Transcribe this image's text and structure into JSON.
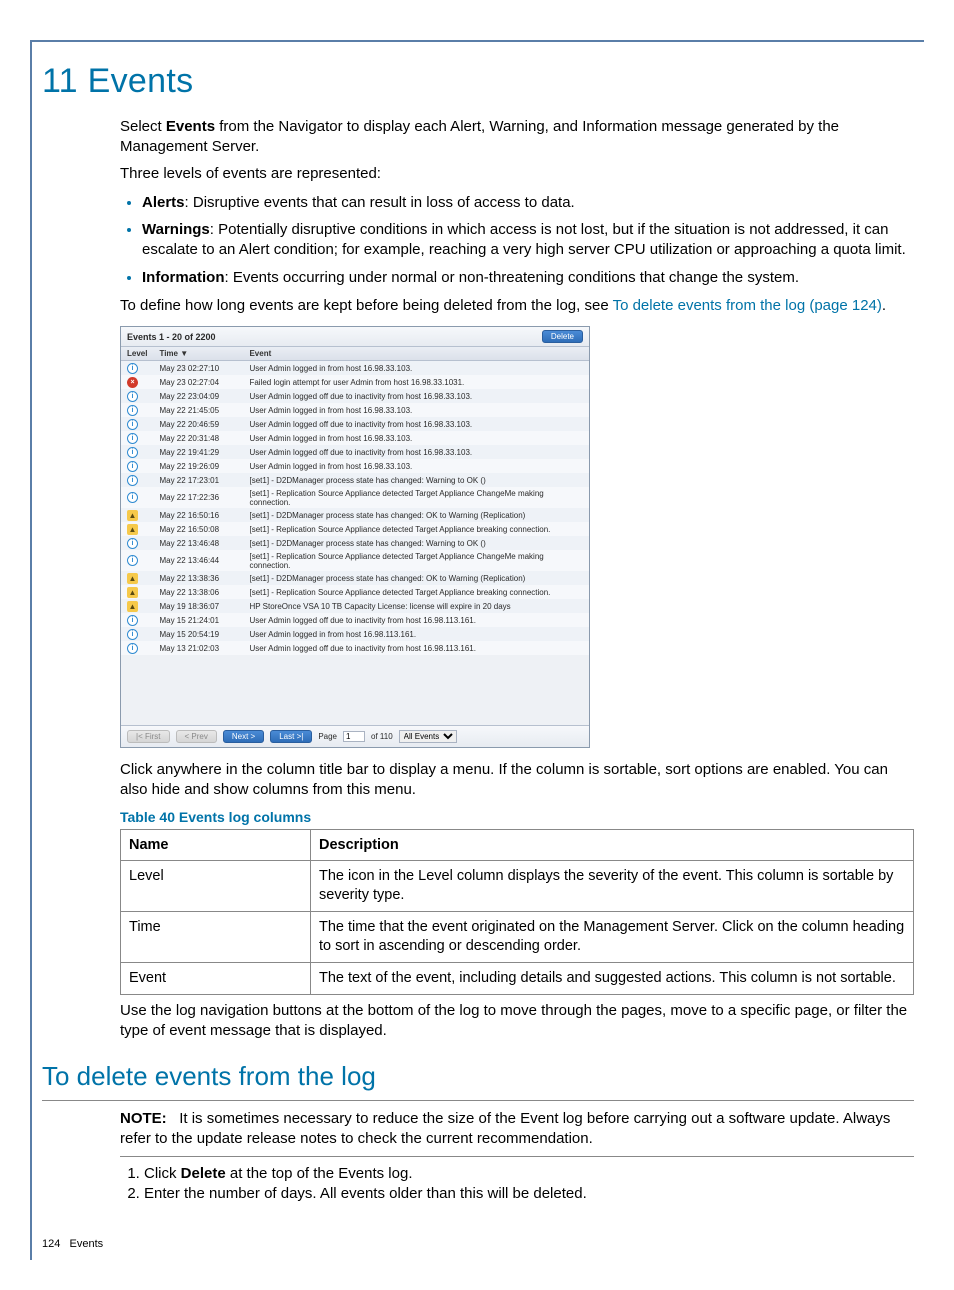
{
  "chapter_title": "11 Events",
  "section_delete_title": "To delete events from the log",
  "intro": {
    "p1_a": "Select ",
    "p1_bold": "Events",
    "p1_b": " from the Navigator to display each Alert, Warning, and Information message generated by the Management Server.",
    "p2": "Three levels of events are represented:",
    "bullet1_bold": "Alerts",
    "bullet1_rest": ": Disruptive events that can result in loss of access to data.",
    "bullet2_bold": "Warnings",
    "bullet2_rest": ": Potentially disruptive conditions in which access is not lost, but if the situation is not addressed, it can escalate to an Alert condition; for example, reaching a very high server CPU utilization or approaching a quota limit.",
    "bullet3_bold": "Information",
    "bullet3_rest": ": Events occurring under normal or non-threatening conditions that change the system.",
    "p3_a": "To define how long events are kept before being deleted from the log, see ",
    "p3_link": "To delete events from the log (page 124)",
    "p3_b": "."
  },
  "afterimg": "Click anywhere in the column title bar to display a menu. If the column is sortable, sort options are enabled. You can also hide and show columns from this menu.",
  "table_caption": "Table 40 Events log columns",
  "columns_table": {
    "h1": "Name",
    "h2": "Description",
    "rows": [
      {
        "name": "Level",
        "desc": "The icon in the Level column displays the severity of the event. This column is sortable by severity type."
      },
      {
        "name": "Time",
        "desc": "The time that the event originated on the Management Server. Click on the column heading to sort in ascending or descending order."
      },
      {
        "name": "Event",
        "desc": "The text of the event, including details and suggested actions. This column is not sortable."
      }
    ]
  },
  "nav_note": "Use the log navigation buttons at the bottom of the log to move through the pages, move to a specific page, or filter the type of event message that is displayed.",
  "delete_section": {
    "note_label": "NOTE:",
    "note_text": "It is sometimes necessary to reduce the size of the Event log before carrying out a software update. Always refer to the update release notes to check the current recommendation.",
    "step1_a": "Click ",
    "step1_bold": "Delete",
    "step1_b": " at the top of the Events log.",
    "step2": "Enter the number of days. All events older than this will be deleted."
  },
  "footer": {
    "page": "124",
    "label": "Events"
  },
  "shot": {
    "title": "Events 1 - 20 of 2200",
    "delete_btn": "Delete",
    "col_level": "Level",
    "col_time": "Time ▼",
    "col_event": "Event",
    "rows": [
      {
        "lvl": "i",
        "time": "May 23 02:27:10",
        "txt": "User Admin logged in from host 16.98.33.103."
      },
      {
        "lvl": "e",
        "time": "May 23 02:27:04",
        "txt": "Failed login attempt for user Admin from host 16.98.33.1031."
      },
      {
        "lvl": "i",
        "time": "May 22 23:04:09",
        "txt": "User Admin logged off due to inactivity from host 16.98.33.103."
      },
      {
        "lvl": "i",
        "time": "May 22 21:45:05",
        "txt": "User Admin logged in from host 16.98.33.103."
      },
      {
        "lvl": "i",
        "time": "May 22 20:46:59",
        "txt": "User Admin logged off due to inactivity from host 16.98.33.103."
      },
      {
        "lvl": "i",
        "time": "May 22 20:31:48",
        "txt": "User Admin logged in from host 16.98.33.103."
      },
      {
        "lvl": "i",
        "time": "May 22 19:41:29",
        "txt": "User Admin logged off due to inactivity from host 16.98.33.103."
      },
      {
        "lvl": "i",
        "time": "May 22 19:26:09",
        "txt": "User Admin logged in from host 16.98.33.103."
      },
      {
        "lvl": "i",
        "time": "May 22 17:23:01",
        "txt": "[set1] - D2DManager process state has changed: Warning to OK ()"
      },
      {
        "lvl": "i",
        "time": "May 22 17:22:36",
        "txt": "[set1] - Replication Source Appliance detected Target Appliance ChangeMe making connection."
      },
      {
        "lvl": "w",
        "time": "May 22 16:50:16",
        "txt": "[set1] - D2DManager process state has changed: OK to Warning (Replication)"
      },
      {
        "lvl": "w",
        "time": "May 22 16:50:08",
        "txt": "[set1] - Replication Source Appliance detected Target Appliance breaking connection."
      },
      {
        "lvl": "i",
        "time": "May 22 13:46:48",
        "txt": "[set1] - D2DManager process state has changed: Warning to OK ()"
      },
      {
        "lvl": "i",
        "time": "May 22 13:46:44",
        "txt": "[set1] - Replication Source Appliance detected Target Appliance ChangeMe making connection."
      },
      {
        "lvl": "w",
        "time": "May 22 13:38:36",
        "txt": "[set1] - D2DManager process state has changed: OK to Warning (Replication)"
      },
      {
        "lvl": "w",
        "time": "May 22 13:38:06",
        "txt": "[set1] - Replication Source Appliance detected Target Appliance breaking connection."
      },
      {
        "lvl": "w",
        "time": "May 19 18:36:07",
        "txt": "HP StoreOnce VSA 10 TB Capacity License: license will expire in 20 days"
      },
      {
        "lvl": "i",
        "time": "May 15 21:24:01",
        "txt": "User Admin logged off due to inactivity from host 16.98.113.161."
      },
      {
        "lvl": "i",
        "time": "May 15 20:54:19",
        "txt": "User Admin logged in from host 16.98.113.161."
      },
      {
        "lvl": "i",
        "time": "May 13 21:02:03",
        "txt": "User Admin logged off due to inactivity from host 16.98.113.161."
      }
    ],
    "pager": {
      "first": "|< First",
      "prev": "< Prev",
      "next": "Next >",
      "last": "Last >|",
      "page_label": "Page",
      "page_val": "1",
      "of_label": "of 110",
      "filter": "All Events"
    }
  }
}
